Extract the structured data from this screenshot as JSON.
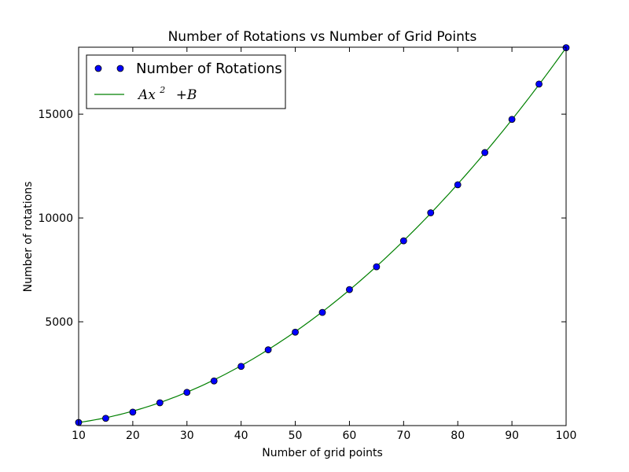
{
  "chart_data": {
    "type": "line",
    "title": "Number of Rotations vs Number of Grid Points",
    "xlabel": "Number of grid points",
    "ylabel": "Number of rotations",
    "xlim": [
      10,
      100
    ],
    "ylim": [
      0,
      18225
    ],
    "xticks": [
      10,
      20,
      30,
      40,
      50,
      60,
      70,
      80,
      90,
      100
    ],
    "yticks": [
      5000,
      10000,
      15000
    ],
    "grid": false,
    "legend_placement": "top-left",
    "series": [
      {
        "name": "Number of Rotations",
        "kind": "scatter",
        "marker": "circle",
        "color": "#0000ff",
        "x": [
          10,
          15,
          20,
          25,
          30,
          35,
          40,
          45,
          50,
          55,
          60,
          65,
          70,
          75,
          80,
          85,
          90,
          95,
          100
        ],
        "y": [
          150,
          350,
          650,
          1100,
          1600,
          2150,
          2850,
          3650,
          4500,
          5450,
          6550,
          7650,
          8900,
          10250,
          11600,
          13150,
          14750,
          16450,
          18200
        ]
      },
      {
        "name": "Ax^2 +B",
        "kind": "line",
        "color": "#008000",
        "x": [
          10,
          100
        ],
        "y": [
          150,
          18200
        ]
      }
    ]
  },
  "legend": {
    "entries": [
      {
        "label": "Number of Rotations"
      },
      {
        "base": "Ax",
        "sup": "2",
        "tail": "+B"
      }
    ]
  }
}
